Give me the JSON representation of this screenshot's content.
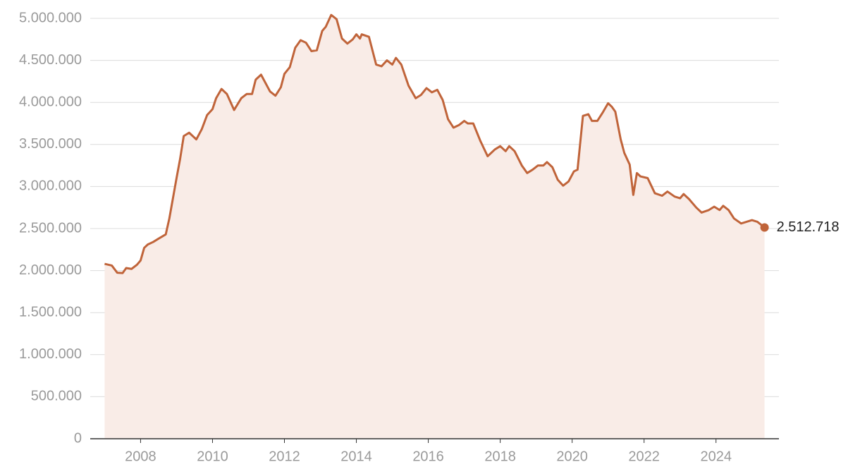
{
  "chart_data": {
    "type": "area",
    "x": [
      2007.0,
      2007.2,
      2007.35,
      2007.5,
      2007.6,
      2007.75,
      2007.9,
      2008.0,
      2008.1,
      2008.2,
      2008.35,
      2008.5,
      2008.7,
      2008.8,
      2009.0,
      2009.1,
      2009.2,
      2009.35,
      2009.55,
      2009.7,
      2009.85,
      2010.0,
      2010.1,
      2010.25,
      2010.4,
      2010.6,
      2010.8,
      2010.95,
      2011.1,
      2011.2,
      2011.35,
      2011.6,
      2011.75,
      2011.9,
      2012.0,
      2012.15,
      2012.3,
      2012.45,
      2012.6,
      2012.75,
      2012.9,
      2013.05,
      2013.15,
      2013.3,
      2013.45,
      2013.6,
      2013.75,
      2013.9,
      2014.0,
      2014.1,
      2014.15,
      2014.35,
      2014.55,
      2014.7,
      2014.85,
      2015.0,
      2015.1,
      2015.25,
      2015.45,
      2015.65,
      2015.8,
      2015.95,
      2016.1,
      2016.25,
      2016.4,
      2016.55,
      2016.7,
      2016.85,
      2017.0,
      2017.1,
      2017.25,
      2017.45,
      2017.65,
      2017.85,
      2018.0,
      2018.15,
      2018.25,
      2018.4,
      2018.6,
      2018.75,
      2018.9,
      2019.05,
      2019.2,
      2019.3,
      2019.45,
      2019.6,
      2019.75,
      2019.9,
      2020.05,
      2020.15,
      2020.3,
      2020.45,
      2020.55,
      2020.7,
      2020.85,
      2021.0,
      2021.1,
      2021.2,
      2021.35,
      2021.45,
      2021.6,
      2021.7,
      2021.8,
      2021.9,
      2022.1,
      2022.3,
      2022.5,
      2022.65,
      2022.85,
      2023.0,
      2023.1,
      2023.25,
      2023.45,
      2023.6,
      2023.8,
      2023.95,
      2024.1,
      2024.2,
      2024.35,
      2024.5,
      2024.7,
      2024.85,
      2025.0,
      2025.15,
      2025.35
    ],
    "values": [
      2080000,
      2060000,
      1975000,
      1970000,
      2030000,
      2020000,
      2070000,
      2120000,
      2270000,
      2310000,
      2340000,
      2380000,
      2430000,
      2620000,
      3100000,
      3330000,
      3600000,
      3640000,
      3560000,
      3680000,
      3850000,
      3920000,
      4050000,
      4160000,
      4100000,
      3910000,
      4050000,
      4100000,
      4100000,
      4270000,
      4330000,
      4130000,
      4080000,
      4180000,
      4340000,
      4420000,
      4650000,
      4740000,
      4710000,
      4610000,
      4620000,
      4850000,
      4900000,
      5040000,
      4990000,
      4760000,
      4700000,
      4750000,
      4810000,
      4760000,
      4810000,
      4780000,
      4450000,
      4430000,
      4500000,
      4450000,
      4530000,
      4450000,
      4200000,
      4050000,
      4090000,
      4170000,
      4120000,
      4150000,
      4030000,
      3800000,
      3700000,
      3730000,
      3780000,
      3750000,
      3750000,
      3540000,
      3360000,
      3440000,
      3480000,
      3420000,
      3480000,
      3420000,
      3250000,
      3160000,
      3200000,
      3250000,
      3250000,
      3290000,
      3230000,
      3080000,
      3010000,
      3060000,
      3180000,
      3200000,
      3840000,
      3860000,
      3780000,
      3780000,
      3880000,
      3990000,
      3950000,
      3890000,
      3560000,
      3400000,
      3260000,
      2900000,
      3160000,
      3120000,
      3100000,
      2920000,
      2890000,
      2940000,
      2880000,
      2860000,
      2910000,
      2850000,
      2750000,
      2690000,
      2720000,
      2760000,
      2720000,
      2770000,
      2720000,
      2620000,
      2560000,
      2580000,
      2600000,
      2580000,
      2512718
    ],
    "value_labels": [
      null,
      null,
      null,
      null,
      null,
      null,
      null,
      null,
      null,
      null,
      null,
      null,
      null,
      null,
      null,
      null,
      null,
      null,
      null,
      null,
      null,
      null,
      null,
      null,
      null,
      null,
      null,
      null,
      null,
      null,
      null,
      null,
      null,
      null,
      null,
      null,
      null,
      null,
      null,
      null,
      null,
      null,
      null,
      null,
      null,
      null,
      null,
      null,
      null,
      null,
      null,
      null,
      null,
      null,
      null,
      null,
      null,
      null,
      null,
      null,
      null,
      null,
      null,
      null,
      null,
      null,
      null,
      null,
      null,
      null,
      null,
      null,
      null,
      null,
      null,
      null,
      null,
      null,
      null,
      null,
      null,
      null,
      null,
      null,
      null,
      null,
      null,
      null,
      null,
      null,
      null,
      null,
      null,
      null,
      null,
      null,
      null,
      null,
      null,
      null,
      null,
      null,
      null,
      null,
      null,
      null,
      null,
      null,
      null,
      null,
      null,
      null,
      null,
      null,
      null,
      null,
      null,
      null,
      null,
      null,
      null,
      null,
      null,
      null,
      "2.512.718"
    ],
    "color": "#c0643a",
    "fill": "#f9ece7",
    "xlim": [
      2006.6,
      2025.75
    ],
    "xticks": [
      2008,
      2010,
      2012,
      2014,
      2016,
      2018,
      2020,
      2022,
      2024
    ],
    "ylim": [
      0,
      5000000
    ],
    "yticks": [
      0,
      {
        "value": 500000,
        "label": "500.000"
      },
      {
        "value": 1000000,
        "label": "1.000.000"
      },
      {
        "value": 1500000,
        "label": "1.500.000"
      },
      {
        "value": 2000000,
        "label": "2.000.000"
      },
      {
        "value": 2500000,
        "label": "2.500.000"
      },
      {
        "value": 3000000,
        "label": "3.000.000"
      },
      {
        "value": 3500000,
        "label": "3.500.000"
      },
      {
        "value": 4000000,
        "label": "4.000.000"
      },
      {
        "value": 4500000,
        "label": "4.500.000"
      },
      {
        "value": 5000000,
        "label": "5.000.000"
      }
    ],
    "grid": true
  }
}
